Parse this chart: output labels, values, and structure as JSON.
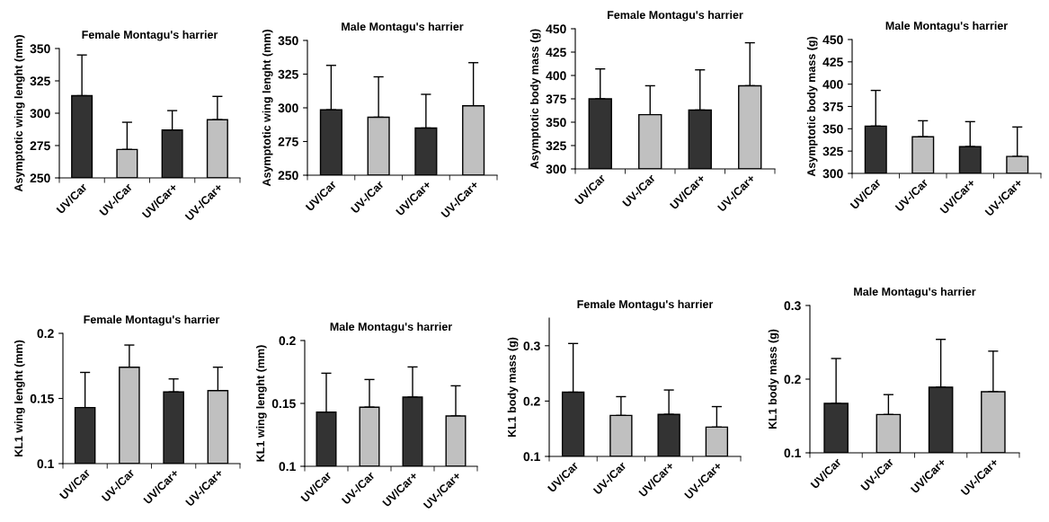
{
  "chart_data": [
    {
      "type": "bar",
      "title": "Female Montagu's harrier",
      "ylabel": "Asymptotic wing lenght (mm)",
      "categories": [
        "UV/Car",
        "UV-/Car",
        "UV/Car+",
        "UV-/Car+"
      ],
      "values": [
        313.5,
        272,
        287,
        295
      ],
      "errors": [
        [
          313.5,
          345
        ],
        [
          272,
          293
        ],
        [
          287,
          302
        ],
        [
          295,
          313
        ]
      ],
      "colors": [
        "#333333",
        "#c0c0c0",
        "#333333",
        "#c0c0c0"
      ],
      "ylim": [
        250,
        350
      ],
      "yticks": [
        250,
        275,
        300,
        325,
        350
      ],
      "grid": false
    },
    {
      "type": "bar",
      "title": "Male Montagu's harrier",
      "ylabel": "Asymptotic wing lenght (mm)",
      "categories": [
        "UV/Car",
        "UV-/Car",
        "UV/Car+",
        "UV-/Car+"
      ],
      "values": [
        298.5,
        293,
        285,
        301.5
      ],
      "errors": [
        [
          298.5,
          331.5
        ],
        [
          293,
          323
        ],
        [
          285,
          310
        ],
        [
          301.5,
          333.5
        ]
      ],
      "colors": [
        "#333333",
        "#c0c0c0",
        "#333333",
        "#c0c0c0"
      ],
      "ylim": [
        250,
        350
      ],
      "yticks": [
        250,
        275,
        300,
        325,
        350
      ],
      "grid": false
    },
    {
      "type": "bar",
      "title": "Female Montagu's harrier",
      "ylabel": "Asymptotic body mass (g)",
      "categories": [
        "UV/Car",
        "UV-/Car",
        "UV/Car+",
        "UV-/Car+"
      ],
      "values": [
        375,
        358,
        363,
        389
      ],
      "errors": [
        [
          375,
          407
        ],
        [
          358,
          389
        ],
        [
          363,
          406
        ],
        [
          389,
          435
        ]
      ],
      "colors": [
        "#333333",
        "#c0c0c0",
        "#333333",
        "#c0c0c0"
      ],
      "ylim": [
        300,
        450
      ],
      "yticks": [
        300,
        325,
        350,
        375,
        400,
        425,
        450
      ],
      "grid": false
    },
    {
      "type": "bar",
      "title": "Male Montagu's harrier",
      "ylabel": "Asymptotic body mass (g)",
      "categories": [
        "UV/Car",
        "UV-/Car",
        "UV/Car+",
        "UV-/Car+"
      ],
      "values": [
        353,
        341,
        330,
        319
      ],
      "errors": [
        [
          353,
          393
        ],
        [
          341,
          359
        ],
        [
          330,
          358
        ],
        [
          319,
          352
        ]
      ],
      "colors": [
        "#333333",
        "#c0c0c0",
        "#333333",
        "#c0c0c0"
      ],
      "ylim": [
        300,
        450
      ],
      "yticks": [
        300,
        325,
        350,
        375,
        400,
        425,
        450
      ],
      "grid": false
    },
    {
      "type": "bar",
      "title": "Female Montagu's harrier",
      "ylabel": "KL1 wing lenght (mm)",
      "categories": [
        "UV/Car",
        "UV-/Car",
        "UV/Car+",
        "UV-/Car+"
      ],
      "values": [
        0.143,
        0.174,
        0.155,
        0.156
      ],
      "errors": [
        [
          0.143,
          0.17
        ],
        [
          0.174,
          0.191
        ],
        [
          0.155,
          0.165
        ],
        [
          0.156,
          0.174
        ]
      ],
      "colors": [
        "#333333",
        "#c0c0c0",
        "#333333",
        "#c0c0c0"
      ],
      "ylim": [
        0.1,
        0.2
      ],
      "yticks": [
        0.1,
        0.15,
        0.2
      ],
      "grid": false
    },
    {
      "type": "bar",
      "title": "Male Montagu's harrier",
      "ylabel": "KL1 wing lenght (mm)",
      "categories": [
        "UV/Car",
        "UV-/Car",
        "UV/Car+",
        "UV-/Car+"
      ],
      "values": [
        0.143,
        0.147,
        0.155,
        0.14
      ],
      "errors": [
        [
          0.143,
          0.174
        ],
        [
          0.147,
          0.169
        ],
        [
          0.155,
          0.179
        ],
        [
          0.14,
          0.164
        ]
      ],
      "colors": [
        "#333333",
        "#c0c0c0",
        "#333333",
        "#c0c0c0"
      ],
      "ylim": [
        0.1,
        0.2
      ],
      "yticks": [
        0.1,
        0.15,
        0.2
      ],
      "grid": false
    },
    {
      "type": "bar",
      "title": "Female Montagu's harrier",
      "ylabel": "KL1 body mass (g)",
      "categories": [
        "UV/Car",
        "UV-/Car",
        "UV/Car+",
        "UV-/Car+"
      ],
      "values": [
        0.216,
        0.174,
        0.176,
        0.153
      ],
      "errors": [
        [
          0.216,
          0.304
        ],
        [
          0.174,
          0.208
        ],
        [
          0.176,
          0.22
        ],
        [
          0.153,
          0.19
        ]
      ],
      "colors": [
        "#333333",
        "#c0c0c0",
        "#333333",
        "#c0c0c0"
      ],
      "ylim": [
        0.1,
        0.35
      ],
      "yticks": [
        0.1,
        0.2,
        0.3
      ],
      "grid": false
    },
    {
      "type": "bar",
      "title": "Male Montagu's harrier",
      "ylabel": "KL1 body mass (g)",
      "categories": [
        "UV/Car",
        "UV-/Car",
        "UV/Car+",
        "UV-/Car+"
      ],
      "values": [
        0.167,
        0.152,
        0.189,
        0.183
      ],
      "errors": [
        [
          0.167,
          0.228
        ],
        [
          0.152,
          0.179
        ],
        [
          0.189,
          0.254
        ],
        [
          0.183,
          0.238
        ]
      ],
      "colors": [
        "#333333",
        "#c0c0c0",
        "#333333",
        "#c0c0c0"
      ],
      "ylim": [
        0.1,
        0.3
      ],
      "yticks": [
        0.1,
        0.2,
        0.3
      ],
      "grid": false
    }
  ]
}
